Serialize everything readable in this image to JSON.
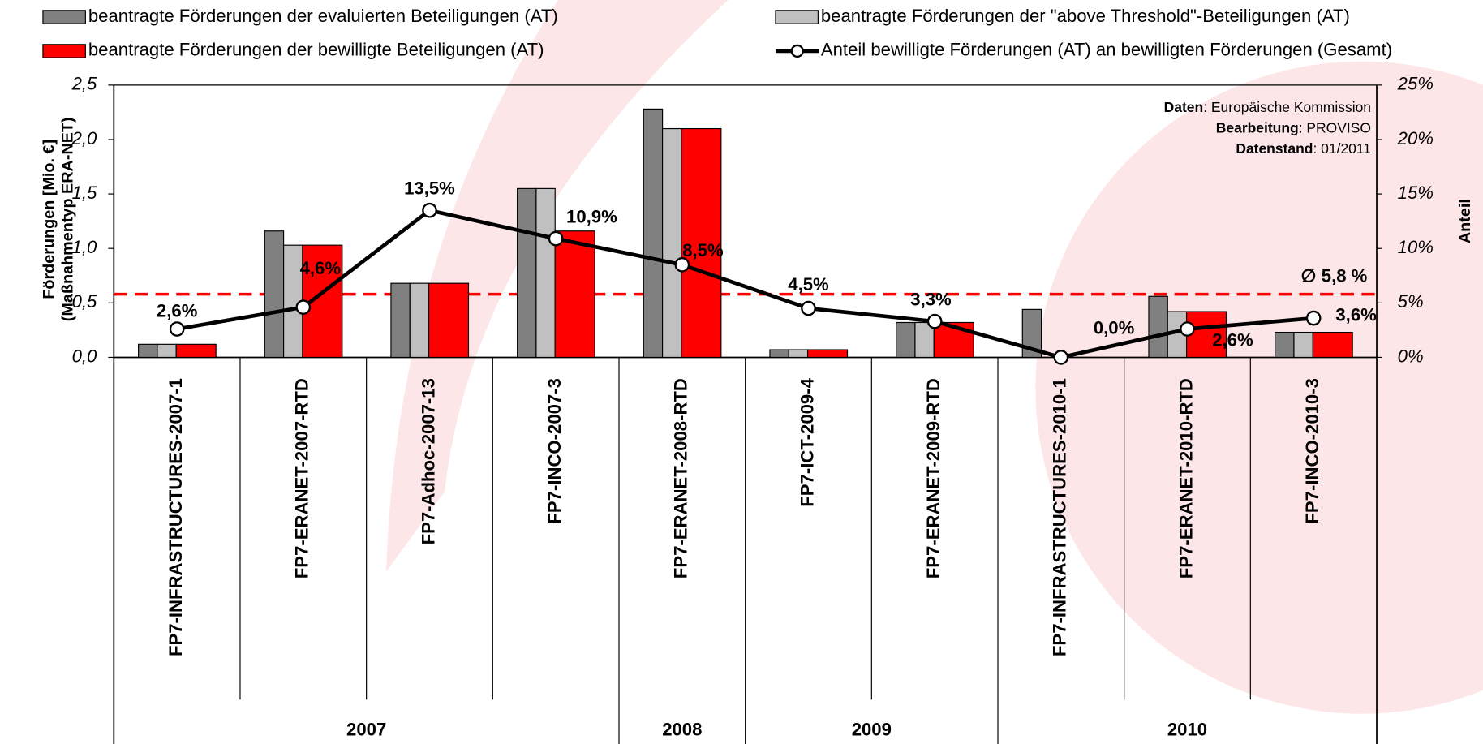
{
  "chart_data": {
    "type": "bar",
    "categories": [
      "FP7-INFRASTRUCTURES-2007-1",
      "FP7-ERANET-2007-RTD",
      "FP7-Adhoc-2007-13",
      "FP7-INCO-2007-3",
      "FP7-ERANET-2008-RTD",
      "FP7-ICT-2009-4",
      "FP7-ERANET-2009-RTD",
      "FP7-INFRASTRUCTURES-2010-1",
      "FP7-ERANET-2010-RTD",
      "FP7-INCO-2010-3"
    ],
    "groups": [
      {
        "label": "2007",
        "size": 4
      },
      {
        "label": "2008",
        "size": 1
      },
      {
        "label": "2009",
        "size": 2
      },
      {
        "label": "2010",
        "size": 3
      }
    ],
    "series": [
      {
        "name": "beantragte Förderungen der evaluierten Beteiligungen (AT)",
        "color": "#808080",
        "values": [
          0.12,
          1.16,
          0.68,
          1.55,
          2.28,
          0.07,
          0.32,
          0.44,
          0.56,
          0.23
        ]
      },
      {
        "name": "beantragte Förderungen der \"above Threshold\"-Beteiligungen (AT)",
        "color": "#c0c0c0",
        "values": [
          0.12,
          1.03,
          0.68,
          1.55,
          2.1,
          0.07,
          0.32,
          0,
          0.42,
          0.23
        ]
      },
      {
        "name": "beantragte Förderungen der bewilligte Beteiligungen (AT)",
        "color": "#ff0000",
        "values": [
          0.12,
          1.03,
          0.68,
          1.16,
          2.1,
          0.07,
          0.32,
          0,
          0.42,
          0.23
        ]
      },
      {
        "name": "Anteil bewilligte Förderungen (AT) an bewilligten Förderungen (Gesamt)",
        "color": "#000000",
        "axis": "y2",
        "values": [
          2.6,
          4.6,
          13.5,
          10.9,
          8.5,
          4.5,
          3.3,
          0.0,
          2.6,
          3.6
        ],
        "value_labels": [
          "2,6%",
          "4,6%",
          "13,5%",
          "10,9%",
          "8,5%",
          "4,5%",
          "3,3%",
          "0,0%",
          "2,6%",
          "3,6%"
        ]
      }
    ],
    "ylabel": [
      "Förderungen [Mio. €]",
      "(Maßnahmentyp ERA-NET)"
    ],
    "y2label": "Anteil",
    "ylim": [
      0,
      2.5
    ],
    "yticks": [
      {
        "value": 0,
        "label": "0,0"
      },
      {
        "value": 0.5,
        "label": "0,5"
      },
      {
        "value": 1,
        "label": "1,0"
      },
      {
        "value": 1.5,
        "label": "1,5"
      },
      {
        "value": 2,
        "label": "2,0"
      },
      {
        "value": 2.5,
        "label": "2,5"
      }
    ],
    "y2lim": [
      0,
      25
    ],
    "y2ticks": [
      {
        "value": 0,
        "label": "0%"
      },
      {
        "value": 5,
        "label": "5%"
      },
      {
        "value": 10,
        "label": "10%"
      },
      {
        "value": 15,
        "label": "15%"
      },
      {
        "value": 20,
        "label": "20%"
      },
      {
        "value": 25,
        "label": "25%"
      }
    ],
    "average": {
      "value": 5.8,
      "label": "∅ 5,8 %",
      "color": "#ff0000"
    },
    "annotations": [
      {
        "key": "Daten",
        "text": ": Europäische Kommission"
      },
      {
        "key": "Bearbeitung",
        "text": ": PROVISO"
      },
      {
        "key": "Datenstand",
        "text": ": 01/2011"
      }
    ],
    "grid": false
  }
}
